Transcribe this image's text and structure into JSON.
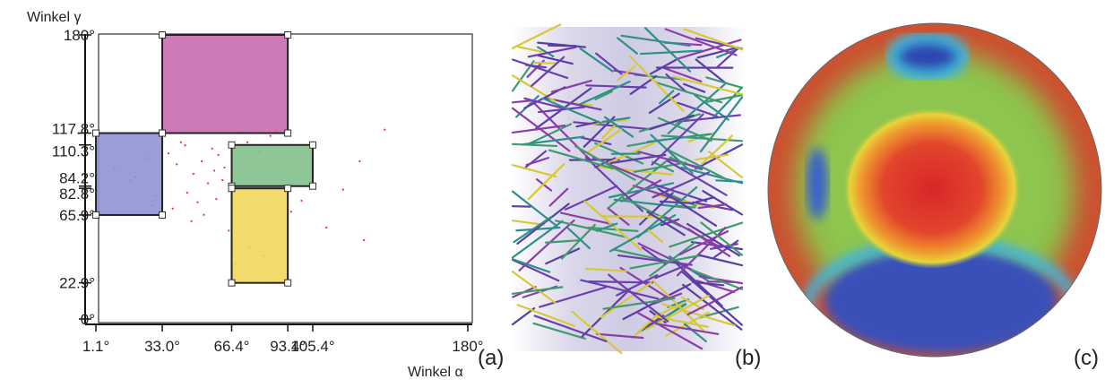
{
  "panel_a": {
    "y_axis_label": "Winkel γ",
    "x_axis_label": "Winkel α",
    "panel_label": "(a)",
    "xlim": [
      0,
      180
    ],
    "ylim": [
      0,
      180
    ],
    "xticks": [
      {
        "value": 1.1,
        "label": "1.1°"
      },
      {
        "value": 33.0,
        "label": "33.0°"
      },
      {
        "value": 66.4,
        "label": "66.4°"
      },
      {
        "value": 93.4,
        "label": "93.4°"
      },
      {
        "value": 105.4,
        "label": "105.4°"
      },
      {
        "value": 180,
        "label": "180°"
      }
    ],
    "yticks": [
      {
        "value": 0,
        "label": "0°"
      },
      {
        "value": 22.9,
        "label": "22.9°"
      },
      {
        "value": 65.9,
        "label": "65.9°"
      },
      {
        "value": 82.8,
        "label": "82.8°"
      },
      {
        "value": 84.2,
        "label": "84.2°"
      },
      {
        "value": 110.3,
        "label": "110.3°"
      },
      {
        "value": 117.8,
        "label": "117.8°"
      },
      {
        "value": 180,
        "label": "180°"
      }
    ],
    "rects": [
      {
        "color": "#c96bb1",
        "alpha": [
          33.0,
          93.4
        ],
        "gamma": [
          117.8,
          180
        ]
      },
      {
        "color": "#8f92d2",
        "alpha": [
          1.1,
          33.0
        ],
        "gamma": [
          65.9,
          117.8
        ]
      },
      {
        "color": "#83c08c",
        "alpha": [
          66.4,
          105.4
        ],
        "gamma": [
          84.2,
          110.3
        ]
      },
      {
        "color": "#f1d65c",
        "alpha": [
          66.4,
          93.4
        ],
        "gamma": [
          22.9,
          82.8
        ]
      }
    ],
    "points": {
      "color": "#d9304a",
      "alpha": [
        36,
        40,
        44,
        48,
        52,
        55,
        58,
        60,
        62,
        45,
        50,
        38,
        42,
        57,
        63,
        70,
        74,
        80,
        85,
        88,
        120,
        128,
        140,
        10,
        18,
        25,
        30,
        47,
        53,
        59,
        65,
        112,
        100,
        95,
        130,
        75,
        82,
        68,
        20,
        28
      ],
      "gamma": [
        105,
        98,
        110,
        92,
        100,
        86,
        94,
        104,
        88,
        80,
        74,
        70,
        112,
        108,
        96,
        118,
        112,
        106,
        116,
        120,
        82,
        100,
        120,
        95,
        88,
        102,
        78,
        62,
        66,
        76,
        56,
        58,
        75,
        68,
        50,
        45,
        40,
        35,
        90,
        72
      ]
    }
  },
  "panel_b": {
    "panel_label": "(b)"
  },
  "panel_c": {
    "panel_label": "(c)"
  }
}
